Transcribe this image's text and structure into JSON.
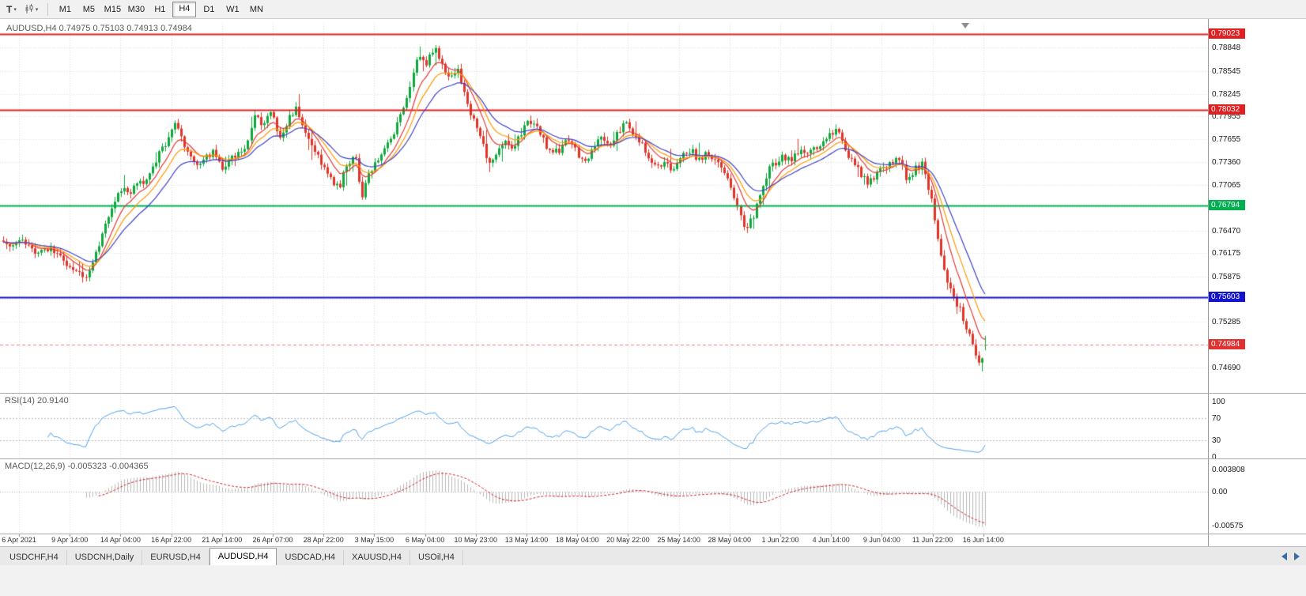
{
  "toolbar": {
    "templates_button": {
      "label": "T"
    },
    "timeframes": [
      {
        "label": "M1",
        "active": false
      },
      {
        "label": "M5",
        "active": false
      },
      {
        "label": "M15",
        "active": false
      },
      {
        "label": "M30",
        "active": false
      },
      {
        "label": "H1",
        "active": false
      },
      {
        "label": "H4",
        "active": true
      },
      {
        "label": "D1",
        "active": false
      },
      {
        "label": "W1",
        "active": false
      },
      {
        "label": "MN",
        "active": false
      }
    ]
  },
  "chart": {
    "title": "AUDUSD,H4 0.74975 0.75103 0.74913 0.74984",
    "symbol": "AUDUSD",
    "timeframe": "H4"
  },
  "price_axis": {
    "ticks": [
      "0.78848",
      "0.78545",
      "0.78245",
      "0.77955",
      "0.77655",
      "0.77360",
      "0.77065",
      "0.76770",
      "0.76470",
      "0.76175",
      "0.75875",
      "0.75585",
      "0.75285",
      "0.74690"
    ]
  },
  "current_price": {
    "label": "0.74984",
    "color": "#e03030"
  },
  "indicators": {
    "rsi": {
      "label": "RSI(14) 20.9140",
      "period": 14,
      "value": 20.914,
      "ticks": [
        "100",
        "70",
        "30",
        "0"
      ]
    },
    "macd": {
      "label": "MACD(12,26,9) -0.005323 -0.004365",
      "fast": 12,
      "slow": 26,
      "signal_period": 9,
      "value": -0.005323,
      "signal_value": -0.004365,
      "ticks": [
        "0.003808",
        "0.00",
        "-0.00575"
      ]
    }
  },
  "time_axis": {
    "labels": [
      "6 Apr 2021",
      "9 Apr 14:00",
      "14 Apr 04:00",
      "16 Apr 22:00",
      "21 Apr 14:00",
      "26 Apr 07:00",
      "28 Apr 22:00",
      "3 May 15:00",
      "6 May 04:00",
      "10 May 23:00",
      "13 May 14:00",
      "18 May 04:00",
      "20 May 22:00",
      "25 May 14:00",
      "28 May 04:00",
      "1 Jun 22:00",
      "4 Jun 14:00",
      "9 Jun 04:00",
      "11 Jun 22:00",
      "16 Jun 14:00"
    ]
  },
  "bottom_tabs": {
    "items": [
      {
        "label": "USDCHF,H4",
        "active": false
      },
      {
        "label": "USDCNH,Daily",
        "active": false
      },
      {
        "label": "EURUSD,H4",
        "active": false
      },
      {
        "label": "AUDUSD,H4",
        "active": true
      },
      {
        "label": "USDCAD,H4",
        "active": false
      },
      {
        "label": "XAUUSD,H4",
        "active": false
      },
      {
        "label": "USOil,H4",
        "active": false
      }
    ]
  },
  "chart_data": {
    "type": "candlestick",
    "symbol": "AUDUSD",
    "timeframe": "H4",
    "last_candle": {
      "open": 0.74975,
      "high": 0.75103,
      "low": 0.74913,
      "close": 0.74984
    },
    "visible_price_range": [
      0.7469,
      0.7905
    ],
    "candle_count": 310,
    "horizontal_lines": [
      {
        "price": 0.79023,
        "label": "0.79023",
        "color": "#e02020"
      },
      {
        "price": 0.78032,
        "label": "0.78032",
        "color": "#e02020"
      },
      {
        "price": 0.76794,
        "label": "0.76794",
        "color": "#00b050"
      },
      {
        "price": 0.75603,
        "label": "0.75603",
        "color": "#1414cc"
      }
    ],
    "moving_averages": [
      {
        "name": "fast-ma",
        "period": 8,
        "color": "#e53935"
      },
      {
        "name": "medium-ma",
        "period": 13,
        "color": "#ff9800"
      },
      {
        "name": "slow-ma",
        "period": 21,
        "color": "#4043c8"
      }
    ],
    "colors": {
      "bull": "#0fa83c",
      "bear": "#e03428",
      "rsi": "#4d9fe8",
      "macd_histogram": "#b9b9b9",
      "macd_signal": "#cc2222"
    },
    "price_path": [
      [
        0.0,
        0.7634
      ],
      [
        0.008,
        0.7622
      ],
      [
        0.018,
        0.7636
      ],
      [
        0.028,
        0.7626
      ],
      [
        0.038,
        0.7616
      ],
      [
        0.048,
        0.7628
      ],
      [
        0.058,
        0.7612
      ],
      [
        0.068,
        0.76
      ],
      [
        0.078,
        0.7592
      ],
      [
        0.085,
        0.7588
      ],
      [
        0.092,
        0.7606
      ],
      [
        0.098,
        0.7636
      ],
      [
        0.105,
        0.7662
      ],
      [
        0.112,
        0.7686
      ],
      [
        0.12,
        0.7702
      ],
      [
        0.128,
        0.7694
      ],
      [
        0.135,
        0.7714
      ],
      [
        0.142,
        0.7706
      ],
      [
        0.15,
        0.7726
      ],
      [
        0.158,
        0.7744
      ],
      [
        0.166,
        0.7762
      ],
      [
        0.175,
        0.7792
      ],
      [
        0.182,
        0.7762
      ],
      [
        0.19,
        0.7744
      ],
      [
        0.198,
        0.7726
      ],
      [
        0.206,
        0.774
      ],
      [
        0.214,
        0.7752
      ],
      [
        0.222,
        0.7728
      ],
      [
        0.23,
        0.7736
      ],
      [
        0.238,
        0.7748
      ],
      [
        0.247,
        0.7758
      ],
      [
        0.256,
        0.7798
      ],
      [
        0.264,
        0.7786
      ],
      [
        0.272,
        0.7806
      ],
      [
        0.28,
        0.7768
      ],
      [
        0.289,
        0.7788
      ],
      [
        0.297,
        0.7808
      ],
      [
        0.306,
        0.7776
      ],
      [
        0.315,
        0.7756
      ],
      [
        0.324,
        0.7736
      ],
      [
        0.333,
        0.7716
      ],
      [
        0.342,
        0.77
      ],
      [
        0.35,
        0.7734
      ],
      [
        0.358,
        0.7744
      ],
      [
        0.366,
        0.7692
      ],
      [
        0.374,
        0.7726
      ],
      [
        0.382,
        0.7742
      ],
      [
        0.39,
        0.7752
      ],
      [
        0.398,
        0.7774
      ],
      [
        0.406,
        0.78
      ],
      [
        0.414,
        0.7836
      ],
      [
        0.422,
        0.787
      ],
      [
        0.43,
        0.7862
      ],
      [
        0.438,
        0.7886
      ],
      [
        0.446,
        0.7866
      ],
      [
        0.454,
        0.7842
      ],
      [
        0.462,
        0.7856
      ],
      [
        0.47,
        0.782
      ],
      [
        0.478,
        0.7794
      ],
      [
        0.486,
        0.7766
      ],
      [
        0.494,
        0.7738
      ],
      [
        0.502,
        0.7744
      ],
      [
        0.51,
        0.7768
      ],
      [
        0.518,
        0.7752
      ],
      [
        0.526,
        0.7768
      ],
      [
        0.535,
        0.779
      ],
      [
        0.544,
        0.778
      ],
      [
        0.552,
        0.776
      ],
      [
        0.56,
        0.7746
      ],
      [
        0.568,
        0.7754
      ],
      [
        0.576,
        0.7764
      ],
      [
        0.584,
        0.7748
      ],
      [
        0.592,
        0.7734
      ],
      [
        0.6,
        0.7752
      ],
      [
        0.608,
        0.7766
      ],
      [
        0.616,
        0.7754
      ],
      [
        0.625,
        0.7772
      ],
      [
        0.634,
        0.779
      ],
      [
        0.642,
        0.7772
      ],
      [
        0.65,
        0.7758
      ],
      [
        0.658,
        0.7742
      ],
      [
        0.666,
        0.773
      ],
      [
        0.675,
        0.774
      ],
      [
        0.683,
        0.7722
      ],
      [
        0.691,
        0.7742
      ],
      [
        0.7,
        0.7752
      ],
      [
        0.708,
        0.774
      ],
      [
        0.716,
        0.7746
      ],
      [
        0.724,
        0.7736
      ],
      [
        0.732,
        0.7726
      ],
      [
        0.74,
        0.7704
      ],
      [
        0.748,
        0.7676
      ],
      [
        0.755,
        0.7652
      ],
      [
        0.762,
        0.766
      ],
      [
        0.77,
        0.7696
      ],
      [
        0.778,
        0.7722
      ],
      [
        0.786,
        0.7736
      ],
      [
        0.794,
        0.7744
      ],
      [
        0.802,
        0.774
      ],
      [
        0.81,
        0.7748
      ],
      [
        0.818,
        0.7744
      ],
      [
        0.826,
        0.7754
      ],
      [
        0.834,
        0.7762
      ],
      [
        0.842,
        0.7772
      ],
      [
        0.85,
        0.778
      ],
      [
        0.857,
        0.7756
      ],
      [
        0.864,
        0.7738
      ],
      [
        0.872,
        0.7722
      ],
      [
        0.88,
        0.7708
      ],
      [
        0.888,
        0.7718
      ],
      [
        0.896,
        0.7728
      ],
      [
        0.904,
        0.7736
      ],
      [
        0.912,
        0.7744
      ],
      [
        0.92,
        0.7712
      ],
      [
        0.928,
        0.7726
      ],
      [
        0.936,
        0.7732
      ],
      [
        0.944,
        0.7692
      ],
      [
        0.95,
        0.7648
      ],
      [
        0.956,
        0.761
      ],
      [
        0.962,
        0.758
      ],
      [
        0.968,
        0.756
      ],
      [
        0.974,
        0.7544
      ],
      [
        0.98,
        0.7524
      ],
      [
        0.986,
        0.75
      ],
      [
        0.991,
        0.7478
      ],
      [
        0.995,
        0.747
      ],
      [
        1.0,
        0.74984
      ]
    ]
  }
}
